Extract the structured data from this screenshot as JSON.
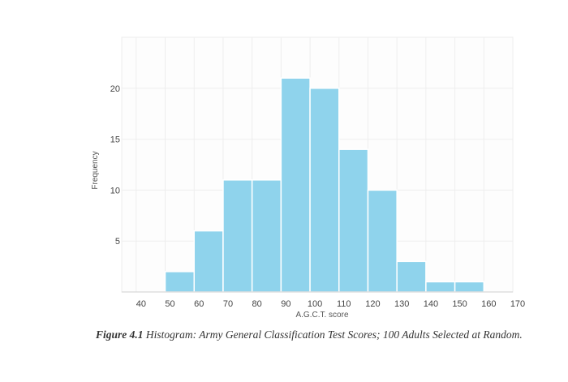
{
  "chart_data": {
    "type": "bar",
    "histogram": true,
    "bins": [
      {
        "start": 50,
        "end": 60,
        "value": 2
      },
      {
        "start": 60,
        "end": 70,
        "value": 6
      },
      {
        "start": 70,
        "end": 80,
        "value": 11
      },
      {
        "start": 80,
        "end": 90,
        "value": 11
      },
      {
        "start": 90,
        "end": 100,
        "value": 21
      },
      {
        "start": 100,
        "end": 110,
        "value": 20
      },
      {
        "start": 110,
        "end": 120,
        "value": 14
      },
      {
        "start": 120,
        "end": 130,
        "value": 10
      },
      {
        "start": 130,
        "end": 140,
        "value": 3
      },
      {
        "start": 140,
        "end": 150,
        "value": 1
      },
      {
        "start": 150,
        "end": 160,
        "value": 1
      }
    ],
    "x_ticks": [
      "40",
      "50",
      "60",
      "70",
      "80",
      "90",
      "100",
      "110",
      "120",
      "130",
      "140",
      "150",
      "160",
      "170"
    ],
    "y_ticks": [
      "5",
      "10",
      "15",
      "20"
    ],
    "xlabel": "A.G.C.T. score",
    "ylabel": "Frequency",
    "xlim": [
      35,
      170
    ],
    "ylim": [
      0,
      25
    ],
    "grid": true,
    "bar_color": "#8fd3ec"
  },
  "caption": {
    "figure_label": "Figure 4.1",
    "text": "Histogram: Army General Classification Test Scores; 100 Adults Selected at Random."
  }
}
